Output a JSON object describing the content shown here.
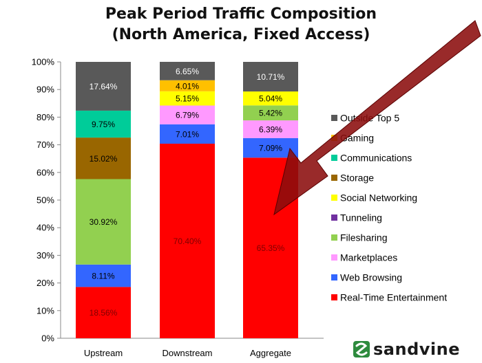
{
  "chart_data": {
    "type": "bar",
    "stacked": true,
    "title_lines": [
      "Peak Period Traffic Composition",
      "(North America, Fixed Access)"
    ],
    "categories": [
      "Upstream",
      "Downstream",
      "Aggregate"
    ],
    "ylim": [
      0,
      100
    ],
    "yticks": [
      "0%",
      "10%",
      "20%",
      "30%",
      "40%",
      "50%",
      "60%",
      "70%",
      "80%",
      "90%",
      "100%"
    ],
    "legend_position": "right",
    "grid": false,
    "series": [
      {
        "name": "Real-Time Entertainment",
        "color": "#ff0000",
        "values": [
          18.56,
          70.4,
          65.35
        ],
        "labels": [
          "18.56%",
          "70.40%",
          "65.35%"
        ]
      },
      {
        "name": "Web Browsing",
        "color": "#3366ff",
        "values": [
          8.11,
          7.01,
          7.09
        ],
        "labels": [
          "8.11%",
          "7.01%",
          "7.09%"
        ]
      },
      {
        "name": "Marketplaces",
        "color": "#ff99ff",
        "values": [
          0,
          6.79,
          6.39
        ],
        "labels": [
          "",
          "6.79%",
          "6.39%"
        ]
      },
      {
        "name": "Filesharing",
        "color": "#92d050",
        "values": [
          30.92,
          0,
          5.42
        ],
        "labels": [
          "30.92%",
          "",
          "5.42%"
        ]
      },
      {
        "name": "Tunneling",
        "color": "#7030a0",
        "values": [
          0,
          0,
          0
        ],
        "labels": [
          "",
          "",
          ""
        ]
      },
      {
        "name": "Social Networking",
        "color": "#ffff00",
        "values": [
          0,
          5.15,
          5.04
        ],
        "labels": [
          "",
          "5.15%",
          "5.04%"
        ]
      },
      {
        "name": "Storage",
        "color": "#996600",
        "values": [
          15.02,
          0,
          0
        ],
        "labels": [
          "15.02%",
          "",
          ""
        ]
      },
      {
        "name": "Communications",
        "color": "#00cc99",
        "values": [
          9.75,
          0,
          0
        ],
        "labels": [
          "9.75%",
          "",
          ""
        ]
      },
      {
        "name": "Gaming",
        "color": "#ffc000",
        "values": [
          0,
          4.01,
          0
        ],
        "labels": [
          "",
          "4.01%",
          ""
        ]
      },
      {
        "name": "Outside Top 5",
        "color": "#595959",
        "values": [
          17.64,
          6.65,
          10.71
        ],
        "labels": [
          "17.64%",
          "6.65%",
          "10.71%"
        ]
      }
    ],
    "legend_order": [
      "Outside Top 5",
      "Gaming",
      "Communications",
      "Storage",
      "Social Networking",
      "Tunneling",
      "Filesharing",
      "Marketplaces",
      "Web Browsing",
      "Real-Time Entertainment"
    ],
    "label_colors": {
      "#595959": "#ffffff",
      "#ff0000": "#800000",
      "default": "#000000"
    }
  },
  "brand": {
    "name": "sandvine",
    "logo_icon": "sandvine-logo-icon",
    "logo_color": "#2e8b3e"
  }
}
